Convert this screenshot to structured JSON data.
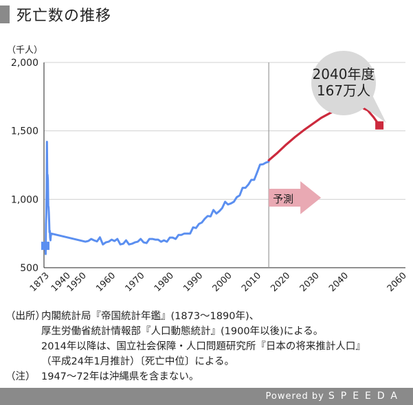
{
  "title": "死亡数の推移",
  "chart_data": {
    "type": "line",
    "unit_label": "（千人）",
    "ylim": [
      500,
      2000
    ],
    "yticks": [
      "500",
      "1,000",
      "1,500",
      "2,000"
    ],
    "xticks": [
      "1873",
      "1940",
      "1950",
      "1960",
      "1970",
      "1980",
      "1990",
      "2000",
      "2010",
      "2020",
      "2030",
      "2040",
      "2060"
    ],
    "forecast_label": "予測",
    "callout": [
      "2040年度",
      "167万人"
    ],
    "series": [
      {
        "color": "#5b8ff0",
        "points": [
          [
            1873,
            660
          ],
          [
            1874,
            600
          ],
          [
            1875,
            820
          ],
          [
            1876,
            900
          ],
          [
            1877,
            1080
          ],
          [
            1878,
            1420
          ],
          [
            1879,
            1170
          ],
          [
            1880,
            1180
          ],
          [
            1881,
            1140
          ],
          [
            1882,
            950
          ],
          [
            1883,
            945
          ],
          [
            1884,
            900
          ],
          [
            1885,
            830
          ],
          [
            1886,
            760
          ],
          [
            1887,
            770
          ],
          [
            1888,
            720
          ],
          [
            1889,
            700
          ],
          [
            1890,
            730
          ],
          [
            1891,
            750
          ],
          [
            1951,
            690
          ],
          [
            1952,
            695
          ],
          [
            1953,
            710
          ],
          [
            1954,
            700
          ],
          [
            1955,
            692
          ],
          [
            1956,
            722
          ],
          [
            1957,
            670
          ],
          [
            1958,
            685
          ],
          [
            1959,
            690
          ],
          [
            1960,
            705
          ],
          [
            1961,
            695
          ],
          [
            1962,
            710
          ],
          [
            1963,
            670
          ],
          [
            1964,
            675
          ],
          [
            1965,
            700
          ],
          [
            1966,
            670
          ],
          [
            1967,
            675
          ],
          [
            1968,
            685
          ],
          [
            1969,
            690
          ],
          [
            1970,
            710
          ],
          [
            1971,
            685
          ],
          [
            1972,
            680
          ],
          [
            1973,
            710
          ],
          [
            1974,
            710
          ],
          [
            1975,
            705
          ],
          [
            1976,
            705
          ],
          [
            1977,
            690
          ],
          [
            1978,
            700
          ],
          [
            1979,
            690
          ],
          [
            1980,
            720
          ],
          [
            1981,
            720
          ],
          [
            1982,
            710
          ],
          [
            1983,
            740
          ],
          [
            1984,
            740
          ],
          [
            1985,
            750
          ],
          [
            1986,
            750
          ],
          [
            1987,
            750
          ],
          [
            1988,
            795
          ],
          [
            1989,
            790
          ],
          [
            1990,
            820
          ],
          [
            1991,
            830
          ],
          [
            1992,
            857
          ],
          [
            1993,
            878
          ],
          [
            1994,
            875
          ],
          [
            1995,
            922
          ],
          [
            1996,
            896
          ],
          [
            1997,
            913
          ],
          [
            1998,
            936
          ],
          [
            1999,
            982
          ],
          [
            2000,
            962
          ],
          [
            2001,
            970
          ],
          [
            2002,
            982
          ],
          [
            2003,
            1015
          ],
          [
            2004,
            1029
          ],
          [
            2005,
            1084
          ],
          [
            2006,
            1084
          ],
          [
            2007,
            1108
          ],
          [
            2008,
            1142
          ],
          [
            2009,
            1142
          ],
          [
            2010,
            1197
          ],
          [
            2011,
            1253
          ],
          [
            2012,
            1256
          ],
          [
            2013,
            1268
          ],
          [
            2014,
            1275
          ]
        ]
      },
      {
        "color": "#cc2a3d",
        "points": [
          [
            2014,
            1285
          ],
          [
            2017,
            1340
          ],
          [
            2020,
            1400
          ],
          [
            2023,
            1455
          ],
          [
            2026,
            1505
          ],
          [
            2029,
            1550
          ],
          [
            2032,
            1595
          ],
          [
            2035,
            1630
          ],
          [
            2038,
            1655
          ],
          [
            2040,
            1665
          ],
          [
            2043,
            1672
          ],
          [
            2046,
            1670
          ],
          [
            2048,
            1650
          ],
          [
            2050,
            1600
          ],
          [
            2052,
            1540
          ]
        ]
      }
    ],
    "markers": [
      {
        "x": 1873,
        "y": 660,
        "color": "#5b8ff0"
      },
      {
        "x": 2052,
        "y": 1540,
        "color": "#cc2a3d"
      }
    ],
    "divider_x": 2014
  },
  "notes": {
    "src_tag": "（出所）",
    "src_line1": "内閣統計局『帝国統計年鑑』(1873〜1890年)、",
    "src_line2": "厚生労働省統計情報部『人口動態統計』(1900年以後)による。",
    "src_line3": "2014年以降は、国立社会保障・人口問題研究所『日本の将来推計人口』",
    "src_line4": "（平成24年1月推計）〔死亡中位〕による。",
    "note_tag": "（注）",
    "note_line1": "1947〜72年は沖縄県を含まない。"
  },
  "footer": {
    "powered": "Powered by",
    "brand": "SPEEDA"
  }
}
